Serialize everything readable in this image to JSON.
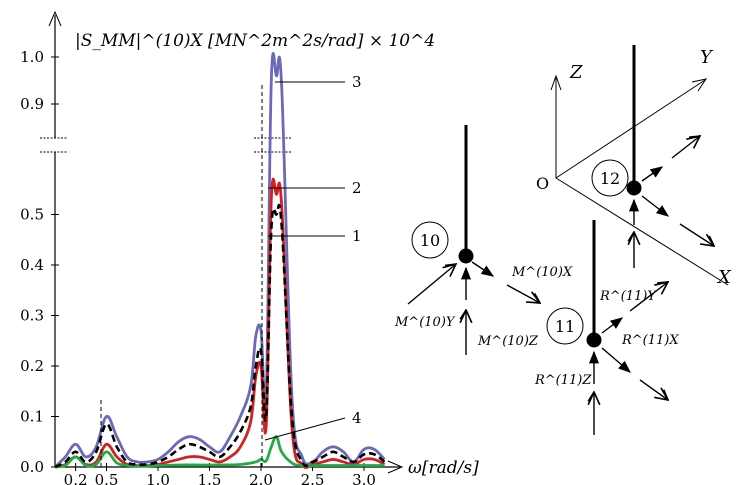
{
  "chart_data": {
    "type": "line",
    "ylabel": "|S_MM|^(10)X [MN^2m^2s/rad] × 10^4",
    "xlabel": "ω[rad/s]",
    "y_ticks": [
      "0.0",
      "0.1",
      "0.2",
      "0.3",
      "0.4",
      "0.5",
      "0.9",
      "1.0"
    ],
    "x_ticks": [
      "0.2",
      "0.5",
      "1.0",
      "1.5",
      "2.0",
      "2.5",
      "3.0"
    ],
    "ylim": [
      0,
      1.0
    ],
    "xlim": [
      0,
      3.4
    ],
    "y_axis_break": [
      0.6,
      0.85
    ],
    "series": [
      {
        "name": "1",
        "color": "#000000",
        "style": "dashed",
        "x": [
          0,
          0.1,
          0.2,
          0.3,
          0.4,
          0.5,
          0.6,
          0.7,
          0.8,
          0.9,
          1.0,
          1.1,
          1.2,
          1.3,
          1.4,
          1.5,
          1.6,
          1.7,
          1.8,
          1.9,
          1.95,
          2.0,
          2.05,
          2.1,
          2.15,
          2.2,
          2.3,
          2.4,
          2.5,
          2.6,
          2.7,
          2.8,
          2.9,
          3.0,
          3.1,
          3.2
        ],
        "y": [
          0,
          0.01,
          0.03,
          0.01,
          0.03,
          0.085,
          0.04,
          0.01,
          0.005,
          0.005,
          0.01,
          0.02,
          0.035,
          0.045,
          0.04,
          0.03,
          0.02,
          0.04,
          0.07,
          0.12,
          0.2,
          0.23,
          0.1,
          0.47,
          0.5,
          0.48,
          0.1,
          0.01,
          0.01,
          0.02,
          0.03,
          0.02,
          0.01,
          0.025,
          0.025,
          0.01
        ]
      },
      {
        "name": "2",
        "color": "#d42020",
        "style": "solid",
        "x": [
          0,
          0.1,
          0.2,
          0.3,
          0.4,
          0.5,
          0.6,
          0.7,
          0.8,
          0.9,
          1.0,
          1.1,
          1.2,
          1.3,
          1.4,
          1.5,
          1.6,
          1.7,
          1.8,
          1.9,
          1.95,
          2.0,
          2.05,
          2.1,
          2.15,
          2.2,
          2.3,
          2.4,
          2.5,
          2.6,
          2.7,
          2.8,
          2.9,
          3.0,
          3.1,
          3.2
        ],
        "y": [
          0,
          0.005,
          0.02,
          0.005,
          0.01,
          0.045,
          0.02,
          0.005,
          0.003,
          0.003,
          0.005,
          0.01,
          0.015,
          0.02,
          0.02,
          0.015,
          0.01,
          0.02,
          0.04,
          0.09,
          0.18,
          0.2,
          0.08,
          0.53,
          0.54,
          0.52,
          0.08,
          0.005,
          0.005,
          0.01,
          0.015,
          0.01,
          0.005,
          0.015,
          0.015,
          0.005
        ]
      },
      {
        "name": "3",
        "color": "#6a6ab8",
        "style": "solid",
        "x": [
          0,
          0.1,
          0.2,
          0.3,
          0.4,
          0.5,
          0.6,
          0.7,
          0.8,
          0.9,
          1.0,
          1.1,
          1.2,
          1.3,
          1.4,
          1.5,
          1.6,
          1.7,
          1.8,
          1.9,
          1.95,
          2.0,
          2.05,
          2.1,
          2.15,
          2.2,
          2.3,
          2.4,
          2.5,
          2.6,
          2.7,
          2.8,
          2.9,
          3.0,
          3.1,
          3.2
        ],
        "y": [
          0,
          0.02,
          0.045,
          0.02,
          0.04,
          0.1,
          0.06,
          0.02,
          0.01,
          0.01,
          0.015,
          0.03,
          0.05,
          0.06,
          0.055,
          0.04,
          0.03,
          0.06,
          0.1,
          0.16,
          0.26,
          0.27,
          0.14,
          0.95,
          0.96,
          0.94,
          0.14,
          0.02,
          0.01,
          0.03,
          0.04,
          0.03,
          0.01,
          0.035,
          0.035,
          0.015
        ]
      },
      {
        "name": "4",
        "color": "#22aa44",
        "style": "solid",
        "x": [
          0,
          0.1,
          0.2,
          0.3,
          0.4,
          0.5,
          0.6,
          0.7,
          0.8,
          0.9,
          1.0,
          1.2,
          1.4,
          1.6,
          1.8,
          1.95,
          2.0,
          2.05,
          2.1,
          2.15,
          2.2,
          2.3,
          2.4,
          2.6,
          2.8,
          3.0,
          3.2
        ],
        "y": [
          0,
          0.003,
          0.02,
          0.003,
          0.005,
          0.03,
          0.008,
          0.003,
          0.002,
          0.002,
          0.003,
          0.004,
          0.004,
          0.004,
          0.005,
          0.01,
          0.015,
          0.012,
          0.04,
          0.06,
          0.03,
          0.008,
          0.003,
          0.003,
          0.003,
          0.003,
          0.003
        ]
      }
    ]
  },
  "diagram": {
    "node_10": "10",
    "node_11": "11",
    "node_12": "12",
    "axis_z": "Z",
    "axis_y": "Y",
    "axis_x": "X",
    "origin": "O",
    "label_m10x": "M^(10)X",
    "label_m10y": "M^(10)Y",
    "label_m10z": "M^(10)Z",
    "label_r11x": "R^(11)X",
    "label_r11y": "R^(11)Y",
    "label_r11z": "R^(11)Z"
  }
}
